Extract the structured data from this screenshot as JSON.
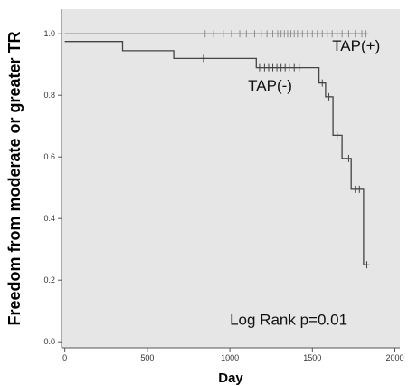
{
  "chart_data": {
    "type": "line",
    "title": "",
    "xlabel": "Day",
    "ylabel": "Freedom from moderate or greater TR",
    "xlim": [
      -20,
      2030
    ],
    "ylim": [
      -0.02,
      1.08
    ],
    "x_ticks": [
      0,
      500,
      1000,
      1500,
      2000
    ],
    "x_tick_labels": [
      "0",
      "500",
      "1000",
      "1500",
      "2000"
    ],
    "y_ticks": [
      0.0,
      0.2,
      0.4,
      0.6,
      0.8,
      1.0
    ],
    "y_tick_labels": [
      "0.0",
      "0.2",
      "0.4",
      "0.6",
      "0.8",
      "1.0"
    ],
    "grid": false,
    "background": "#e6e6e6",
    "series": [
      {
        "name": "TAP(+)",
        "color": "#8c8c8c",
        "steps": [
          [
            0,
            1.0
          ],
          [
            1830,
            1.0
          ]
        ],
        "censored": [
          [
            850,
            1.0
          ],
          [
            900,
            1.0
          ],
          [
            960,
            1.0
          ],
          [
            1010,
            1.0
          ],
          [
            1060,
            1.0
          ],
          [
            1100,
            1.0
          ],
          [
            1150,
            1.0
          ],
          [
            1190,
            1.0
          ],
          [
            1225,
            1.0
          ],
          [
            1260,
            1.0
          ],
          [
            1290,
            1.0
          ],
          [
            1310,
            1.0
          ],
          [
            1330,
            1.0
          ],
          [
            1350,
            1.0
          ],
          [
            1370,
            1.0
          ],
          [
            1390,
            1.0
          ],
          [
            1410,
            1.0
          ],
          [
            1440,
            1.0
          ],
          [
            1470,
            1.0
          ],
          [
            1500,
            1.0
          ],
          [
            1530,
            1.0
          ],
          [
            1560,
            1.0
          ],
          [
            1590,
            1.0
          ],
          [
            1620,
            1.0
          ],
          [
            1650,
            1.0
          ],
          [
            1680,
            1.0
          ],
          [
            1720,
            1.0
          ],
          [
            1760,
            1.0
          ],
          [
            1800,
            1.0
          ],
          [
            1825,
            1.0
          ]
        ]
      },
      {
        "name": "TAP(-)",
        "color": "#444444",
        "steps": [
          [
            0,
            0.975
          ],
          [
            350,
            0.975
          ],
          [
            350,
            0.945
          ],
          [
            660,
            0.945
          ],
          [
            660,
            0.92
          ],
          [
            1160,
            0.92
          ],
          [
            1160,
            0.89
          ],
          [
            1540,
            0.89
          ],
          [
            1540,
            0.84
          ],
          [
            1580,
            0.84
          ],
          [
            1580,
            0.795
          ],
          [
            1625,
            0.795
          ],
          [
            1625,
            0.67
          ],
          [
            1680,
            0.67
          ],
          [
            1680,
            0.595
          ],
          [
            1735,
            0.595
          ],
          [
            1735,
            0.495
          ],
          [
            1810,
            0.495
          ],
          [
            1810,
            0.25
          ],
          [
            1830,
            0.25
          ]
        ],
        "censored": [
          [
            840,
            0.92
          ],
          [
            1180,
            0.89
          ],
          [
            1210,
            0.89
          ],
          [
            1235,
            0.89
          ],
          [
            1260,
            0.89
          ],
          [
            1285,
            0.89
          ],
          [
            1310,
            0.89
          ],
          [
            1335,
            0.89
          ],
          [
            1360,
            0.89
          ],
          [
            1390,
            0.89
          ],
          [
            1420,
            0.89
          ],
          [
            1560,
            0.84
          ],
          [
            1600,
            0.795
          ],
          [
            1650,
            0.67
          ],
          [
            1720,
            0.595
          ],
          [
            1760,
            0.495
          ],
          [
            1785,
            0.495
          ],
          [
            1830,
            0.25
          ]
        ]
      }
    ],
    "annotations": [
      {
        "text": "TAP(+)",
        "x": 1620,
        "y": 0.945,
        "size": 17
      },
      {
        "text": "TAP(-)",
        "x": 1110,
        "y": 0.815,
        "size": 17
      },
      {
        "text": "Log Rank  p=0.01",
        "x": 1000,
        "y": 0.055,
        "size": 17
      }
    ]
  }
}
